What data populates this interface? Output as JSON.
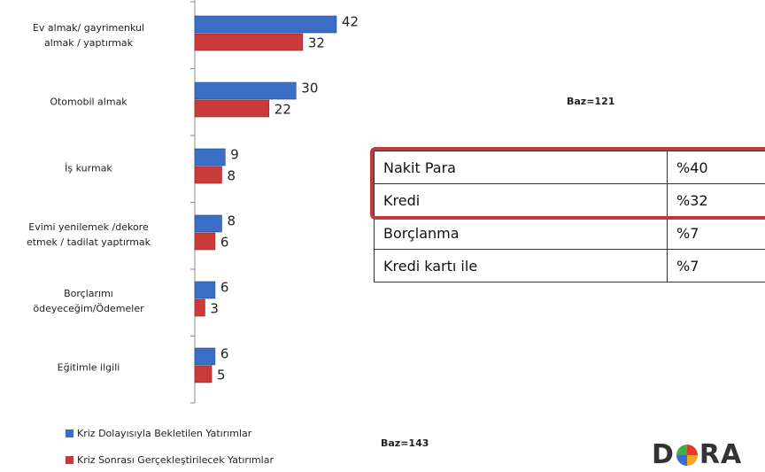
{
  "chart_data": {
    "type": "bar",
    "orientation": "horizontal",
    "categories": [
      "Ev almak/ gayrimenkul\nalmak / yaptırmak",
      "Otomobil almak",
      "İş kurmak",
      "Evimi yenilemek /dekore\netmek / tadilat yaptırmak",
      "Borçlarımı\nödeyeceğim/Ödemeler",
      "Eğitimle ilgili"
    ],
    "series": [
      {
        "name": "Kriz Dolayısıyla Bekletilen Yatırımlar",
        "color": "#3b6fc6",
        "values": [
          42,
          30,
          9,
          8,
          6,
          6
        ]
      },
      {
        "name": "Kriz Sonrası Gerçekleştirilecek Yatırımlar",
        "color": "#c93b3b",
        "values": [
          32,
          22,
          8,
          6,
          3,
          5
        ]
      }
    ],
    "legend": "bottom-left",
    "annotations": [
      "Baz=143"
    ]
  },
  "table": {
    "rows": [
      [
        "Nakit Para",
        "%40"
      ],
      [
        "Kredi",
        "%32"
      ],
      [
        "Borçlanma",
        "%7"
      ],
      [
        "Kredi kartı ile",
        "%7"
      ]
    ],
    "note": "Baz=121"
  },
  "logo": {
    "left": "D",
    "right": "RA"
  }
}
